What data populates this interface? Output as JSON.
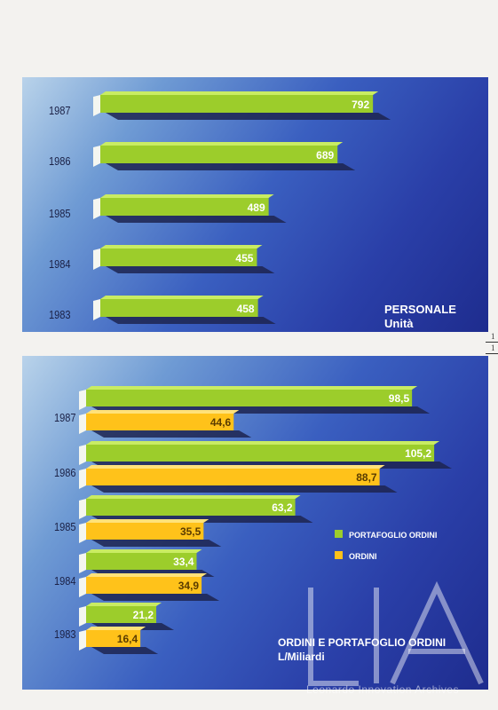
{
  "colors": {
    "green": "#9ccd2b",
    "green_top": "#c9ec63",
    "yellow": "#ffc21a",
    "yellow_top": "#ffe27a",
    "shadow": "#1d2450"
  },
  "chart_data": [
    {
      "type": "bar",
      "orientation": "horizontal",
      "title": "PERSONALE",
      "subtitle": "Unità",
      "categories": [
        "1987",
        "1986",
        "1985",
        "1984",
        "1983"
      ],
      "series": [
        {
          "values": [
            792,
            689,
            489,
            455,
            458
          ]
        }
      ],
      "value_labels": [
        "792",
        "689",
        "489",
        "455",
        "458"
      ],
      "xlim": [
        0,
        820
      ]
    },
    {
      "type": "bar",
      "orientation": "horizontal",
      "title": "ORDINI E PORTAFOGLIO ORDINI",
      "subtitle": "L/Miliardi",
      "categories": [
        "1987",
        "1986",
        "1985",
        "1984",
        "1983"
      ],
      "series": [
        {
          "name": "PORTAFOGLIO ORDINI",
          "values": [
            98.5,
            105.2,
            63.2,
            33.4,
            21.2
          ],
          "labels": [
            "98,5",
            "105,2",
            "63,2",
            "33,4",
            "21,2"
          ]
        },
        {
          "name": "ORDINI",
          "values": [
            44.6,
            88.7,
            35.5,
            34.9,
            16.4
          ],
          "labels": [
            "44,6",
            "88,7",
            "35,5",
            "34,9",
            "16,4"
          ]
        }
      ],
      "legend": "center-right",
      "xlim": [
        0,
        110
      ]
    }
  ],
  "watermark": {
    "logo": "LIA",
    "text": "Leonardo Innovation Archives"
  },
  "margin_marks": [
    "1",
    "1"
  ]
}
